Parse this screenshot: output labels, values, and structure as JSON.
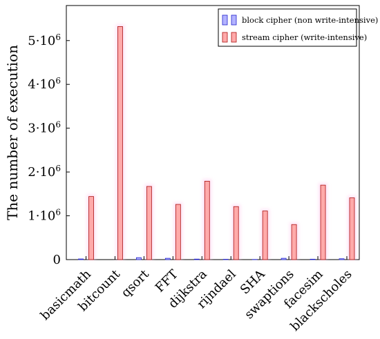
{
  "chart_data": {
    "type": "bar",
    "ylabel": "The number of execution",
    "xlabel": "",
    "title": "",
    "categories": [
      "basicmath",
      "bitcount",
      "qsort",
      "FFT",
      "dijkstra",
      "rijndael",
      "SHA",
      "swaptions",
      "facesim",
      "blackscholes"
    ],
    "series": [
      {
        "name": "block cipher (non write-intensive)",
        "values": [
          15000,
          0,
          45000,
          30000,
          12000,
          8000,
          4000,
          30000,
          10000,
          20000
        ],
        "color": "#b3b3ff",
        "stroke": "#2222cc"
      },
      {
        "name": "stream cipher (write-intensive)",
        "values": [
          1440000,
          5320000,
          1670000,
          1260000,
          1790000,
          1210000,
          1110000,
          800000,
          1700000,
          1410000
        ],
        "color": "#ffaaaa",
        "stroke": "#aa1111"
      }
    ],
    "ylim": [
      0,
      5800000
    ],
    "yticks": [
      {
        "value": 0,
        "label": "0"
      },
      {
        "value": 1000000,
        "label": "1·10^6"
      },
      {
        "value": 2000000,
        "label": "2·10^6"
      },
      {
        "value": 3000000,
        "label": "3·10^6"
      },
      {
        "value": 4000000,
        "label": "4·10^6"
      },
      {
        "value": 5000000,
        "label": "5·10^6"
      }
    ],
    "legend_position": "top-right",
    "grid": false
  }
}
